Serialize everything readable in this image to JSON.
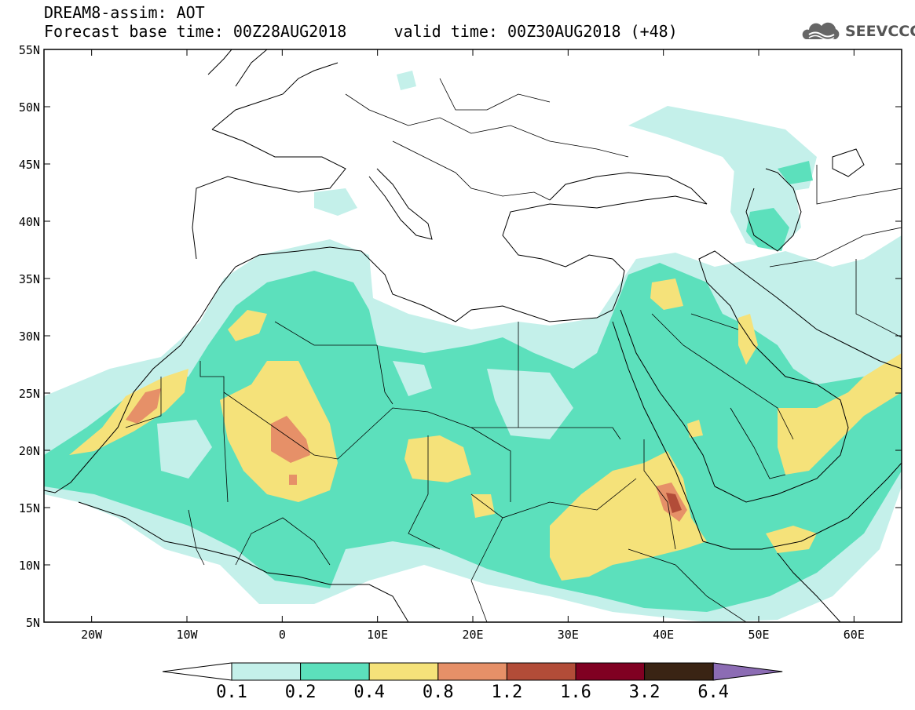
{
  "header": {
    "title": "DREAM8-assim: AOT",
    "subtitle": "Forecast base time: 00Z28AUG2018     valid time: 00Z30AUG2018 (+48)",
    "logo_text": "SEEVCCC",
    "logo_icon": "cloud-logo-icon"
  },
  "map": {
    "lon_range": [
      -25,
      65
    ],
    "lat_range": [
      5,
      55
    ],
    "lat_labels": [
      "55N",
      "50N",
      "45N",
      "40N",
      "35N",
      "30N",
      "25N",
      "20N",
      "15N",
      "10N",
      "5N"
    ],
    "lon_labels": [
      "20W",
      "10W",
      "0",
      "10E",
      "20E",
      "30E",
      "40E",
      "50E",
      "60E"
    ],
    "field": "Aerosol Optical Thickness (AOT)"
  },
  "colorbar": {
    "labels": [
      "0.1",
      "0.2",
      "0.4",
      "0.8",
      "1.2",
      "1.6",
      "3.2",
      "6.4"
    ],
    "colors": [
      "#c4f0ea",
      "#5ce0bc",
      "#f5e27a",
      "#e69068",
      "#b24c38",
      "#800022",
      "#3a2414",
      "#8c6cb4"
    ],
    "under_color": "#ffffff"
  }
}
